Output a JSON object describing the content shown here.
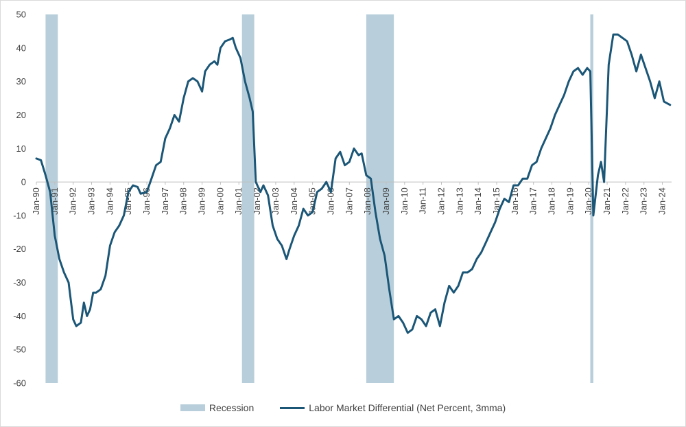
{
  "colors": {
    "series": "#1b5677",
    "recession": "#b8cfdb",
    "zero_line": "#bfbfbf",
    "text": "#404040"
  },
  "chart_data": {
    "type": "line",
    "title": "",
    "xlabel": "",
    "ylabel": "",
    "ylim": [
      -60,
      50
    ],
    "yticks": [
      50,
      40,
      30,
      20,
      10,
      0,
      -10,
      -20,
      -30,
      -40,
      -50,
      -60
    ],
    "xlim": [
      "1990-01",
      "2024-07"
    ],
    "xticks": [
      "Jan-90",
      "Jan-91",
      "Jan-92",
      "Jan-93",
      "Jan-94",
      "Jan-95",
      "Jan-96",
      "Jan-97",
      "Jan-98",
      "Jan-99",
      "Jan-00",
      "Jan-01",
      "Jan-02",
      "Jan-03",
      "Jan-04",
      "Jan-05",
      "Jan-06",
      "Jan-07",
      "Jan-08",
      "Jan-09",
      "Jan-10",
      "Jan-11",
      "Jan-12",
      "Jan-13",
      "Jan-14",
      "Jan-15",
      "Jan-16",
      "Jan-17",
      "Jan-18",
      "Jan-19",
      "Jan-20",
      "Jan-21",
      "Jan-22",
      "Jan-23",
      "Jan-24"
    ],
    "grid": false,
    "legend_position": "bottom",
    "recessions": {
      "name": "Recession",
      "periods": [
        [
          "1990-07",
          "1991-03"
        ],
        [
          "2001-03",
          "2001-11"
        ],
        [
          "2007-12",
          "2009-06"
        ],
        [
          "2020-02",
          "2020-04"
        ]
      ]
    },
    "series": [
      {
        "name": "Labor Market Differential (Net Percent, 3mma)",
        "points": [
          [
            "1990-01",
            7
          ],
          [
            "1990-04",
            6.5
          ],
          [
            "1990-07",
            2
          ],
          [
            "1990-10",
            -3
          ],
          [
            "1991-01",
            -16
          ],
          [
            "1991-04",
            -23
          ],
          [
            "1991-07",
            -27
          ],
          [
            "1991-10",
            -30
          ],
          [
            "1992-01",
            -41
          ],
          [
            "1992-03",
            -43
          ],
          [
            "1992-06",
            -42
          ],
          [
            "1992-08",
            -36
          ],
          [
            "1992-10",
            -40
          ],
          [
            "1992-12",
            -38
          ],
          [
            "1993-02",
            -33
          ],
          [
            "1993-04",
            -33
          ],
          [
            "1993-07",
            -32
          ],
          [
            "1993-10",
            -28
          ],
          [
            "1994-01",
            -19
          ],
          [
            "1994-04",
            -15
          ],
          [
            "1994-07",
            -13
          ],
          [
            "1994-10",
            -10
          ],
          [
            "1995-01",
            -3
          ],
          [
            "1995-04",
            -1
          ],
          [
            "1995-07",
            -1.5
          ],
          [
            "1995-09",
            -3.5
          ],
          [
            "1996-01",
            -3
          ],
          [
            "1996-04",
            1
          ],
          [
            "1996-07",
            5
          ],
          [
            "1996-10",
            6
          ],
          [
            "1997-01",
            13
          ],
          [
            "1997-04",
            16
          ],
          [
            "1997-07",
            20
          ],
          [
            "1997-10",
            18
          ],
          [
            "1998-01",
            25
          ],
          [
            "1998-04",
            30
          ],
          [
            "1998-07",
            31
          ],
          [
            "1998-10",
            30
          ],
          [
            "1999-01",
            27
          ],
          [
            "1999-03",
            33
          ],
          [
            "1999-06",
            35
          ],
          [
            "1999-09",
            36
          ],
          [
            "1999-11",
            35
          ],
          [
            "2000-01",
            40
          ],
          [
            "2000-04",
            42
          ],
          [
            "2000-07",
            42.5
          ],
          [
            "2000-09",
            43
          ],
          [
            "2000-11",
            40
          ],
          [
            "2001-02",
            37
          ],
          [
            "2001-05",
            30
          ],
          [
            "2001-08",
            25
          ],
          [
            "2001-10",
            21
          ],
          [
            "2001-12",
            0
          ],
          [
            "2002-03",
            -3
          ],
          [
            "2002-05",
            -1
          ],
          [
            "2002-08",
            -4
          ],
          [
            "2002-11",
            -13
          ],
          [
            "2003-02",
            -17
          ],
          [
            "2003-05",
            -19
          ],
          [
            "2003-08",
            -23
          ],
          [
            "2003-10",
            -20
          ],
          [
            "2004-01",
            -16
          ],
          [
            "2004-04",
            -13
          ],
          [
            "2004-07",
            -8
          ],
          [
            "2004-10",
            -10
          ],
          [
            "2005-01",
            -9
          ],
          [
            "2005-04",
            -3
          ],
          [
            "2005-07",
            -2
          ],
          [
            "2005-10",
            0
          ],
          [
            "2006-01",
            -3
          ],
          [
            "2006-04",
            7
          ],
          [
            "2006-07",
            9
          ],
          [
            "2006-10",
            5
          ],
          [
            "2007-01",
            6
          ],
          [
            "2007-04",
            10
          ],
          [
            "2007-07",
            8
          ],
          [
            "2007-09",
            8.5
          ],
          [
            "2007-12",
            2
          ],
          [
            "2008-03",
            1
          ],
          [
            "2008-06",
            -9
          ],
          [
            "2008-09",
            -17
          ],
          [
            "2008-12",
            -22
          ],
          [
            "2009-03",
            -32
          ],
          [
            "2009-06",
            -41
          ],
          [
            "2009-09",
            -40
          ],
          [
            "2009-12",
            -42
          ],
          [
            "2010-03",
            -45
          ],
          [
            "2010-06",
            -44
          ],
          [
            "2010-09",
            -40
          ],
          [
            "2010-12",
            -41
          ],
          [
            "2011-03",
            -43
          ],
          [
            "2011-06",
            -39
          ],
          [
            "2011-09",
            -38
          ],
          [
            "2011-12",
            -43
          ],
          [
            "2012-03",
            -36
          ],
          [
            "2012-06",
            -31
          ],
          [
            "2012-09",
            -33
          ],
          [
            "2012-12",
            -31
          ],
          [
            "2013-03",
            -27
          ],
          [
            "2013-06",
            -27
          ],
          [
            "2013-09",
            -26
          ],
          [
            "2013-12",
            -23
          ],
          [
            "2014-03",
            -21
          ],
          [
            "2014-06",
            -18
          ],
          [
            "2014-09",
            -15
          ],
          [
            "2014-12",
            -12
          ],
          [
            "2015-03",
            -8
          ],
          [
            "2015-06",
            -5
          ],
          [
            "2015-09",
            -6
          ],
          [
            "2015-12",
            -1
          ],
          [
            "2016-03",
            -1
          ],
          [
            "2016-06",
            1
          ],
          [
            "2016-09",
            1
          ],
          [
            "2016-12",
            5
          ],
          [
            "2017-03",
            6
          ],
          [
            "2017-06",
            10
          ],
          [
            "2017-09",
            13
          ],
          [
            "2017-12",
            16
          ],
          [
            "2018-03",
            20
          ],
          [
            "2018-06",
            23
          ],
          [
            "2018-09",
            26
          ],
          [
            "2018-12",
            30
          ],
          [
            "2019-03",
            33
          ],
          [
            "2019-06",
            34
          ],
          [
            "2019-09",
            32
          ],
          [
            "2019-12",
            34
          ],
          [
            "2020-02",
            33
          ],
          [
            "2020-04",
            -10
          ],
          [
            "2020-07",
            2
          ],
          [
            "2020-09",
            6
          ],
          [
            "2020-11",
            0
          ],
          [
            "2021-02",
            35
          ],
          [
            "2021-05",
            44
          ],
          [
            "2021-08",
            44
          ],
          [
            "2021-11",
            43
          ],
          [
            "2022-02",
            42
          ],
          [
            "2022-05",
            38
          ],
          [
            "2022-08",
            33
          ],
          [
            "2022-11",
            38
          ],
          [
            "2023-02",
            34
          ],
          [
            "2023-05",
            30
          ],
          [
            "2023-08",
            25
          ],
          [
            "2023-11",
            30
          ],
          [
            "2024-02",
            24
          ],
          [
            "2024-06",
            23
          ]
        ]
      }
    ]
  }
}
